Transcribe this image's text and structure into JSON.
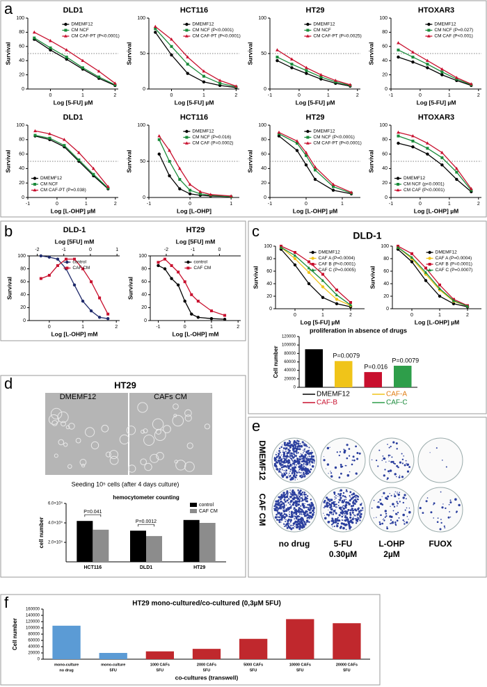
{
  "panels": {
    "letters": [
      "a",
      "b",
      "c",
      "d",
      "e",
      "f"
    ],
    "c_title": "DLD-1",
    "d_title": "HT29",
    "d_image_labels": [
      "DMEMF12",
      "CAFs CM"
    ],
    "d_caption": "Seeding 10⁵ cells (after 4 days culture)",
    "e_rows": [
      "DMEMF12",
      "CAF CM"
    ],
    "e_columns": [
      [
        "no drug"
      ],
      [
        "5-FU",
        "0.30µM"
      ],
      [
        "L-OHP",
        "2µM"
      ],
      [
        "FUOX"
      ]
    ]
  },
  "chart_data": [
    {
      "type": "line",
      "title": "DLD1",
      "xlabel": "Log [5-FU] µM",
      "ylabel": "Survival",
      "x": [
        -0.5,
        0,
        0.5,
        1,
        1.5,
        2
      ],
      "xlim": [
        -0.7,
        2.1
      ],
      "xticks": [
        0,
        1,
        2
      ],
      "ylim": [
        0,
        100
      ],
      "yticks": [
        0,
        20,
        40,
        60,
        80,
        100
      ],
      "reference_line": 50,
      "legend": "upper-right",
      "series": [
        {
          "name": "DMEMF12",
          "color": "#000000",
          "marker": "circle",
          "values": [
            70,
            55,
            42,
            28,
            15,
            5
          ]
        },
        {
          "name": "CM NCF",
          "color": "#1a8a3a",
          "marker": "square",
          "values": [
            72,
            58,
            45,
            30,
            17,
            6
          ]
        },
        {
          "name": "CM CAF-PT (P<0.0001)",
          "color": "#c8102e",
          "marker": "triangle",
          "values": [
            80,
            68,
            55,
            40,
            25,
            8
          ]
        }
      ]
    },
    {
      "type": "line",
      "title": "HCT116",
      "xlabel": "Log [5-FU] µM",
      "ylabel": "Survival",
      "x": [
        -0.5,
        0,
        0.5,
        1,
        1.5,
        2
      ],
      "xlim": [
        -0.7,
        2.1
      ],
      "xticks": [
        0,
        1,
        2
      ],
      "ylim": [
        0,
        100
      ],
      "yticks": [
        0,
        50,
        100
      ],
      "reference_line": 50,
      "legend": "upper-right",
      "series": [
        {
          "name": "DMEMF12",
          "color": "#000000",
          "marker": "circle",
          "values": [
            80,
            48,
            22,
            10,
            5,
            2
          ]
        },
        {
          "name": "CM NCF (P<0.0001)",
          "color": "#1a8a3a",
          "marker": "square",
          "values": [
            85,
            60,
            35,
            18,
            8,
            3
          ]
        },
        {
          "name": "CM CAF-PT (P<0.0001)",
          "color": "#c8102e",
          "marker": "triangle",
          "values": [
            88,
            70,
            45,
            25,
            12,
            4
          ]
        }
      ]
    },
    {
      "type": "line",
      "title": "HT29",
      "xlabel": "Log [5-FU] µM",
      "ylabel": "Survival",
      "x": [
        -0.75,
        -0.25,
        0.25,
        0.75,
        1.25,
        1.75
      ],
      "xlim": [
        -1,
        2.1
      ],
      "xticks": [
        -1,
        0,
        1,
        2
      ],
      "ylim": [
        0,
        100
      ],
      "yticks": [
        0,
        50,
        100
      ],
      "reference_line": 50,
      "legend": "upper-right",
      "series": [
        {
          "name": "DMEMF12",
          "color": "#000000",
          "marker": "circle",
          "values": [
            40,
            30,
            22,
            14,
            8,
            4
          ]
        },
        {
          "name": "CM NCF",
          "color": "#1a8a3a",
          "marker": "square",
          "values": [
            45,
            35,
            26,
            17,
            10,
            5
          ]
        },
        {
          "name": "CM CAF-PT (P=0.0025)",
          "color": "#c8102e",
          "marker": "triangle",
          "values": [
            55,
            42,
            30,
            20,
            12,
            6
          ]
        }
      ]
    },
    {
      "type": "line",
      "title": "HTOXAR3",
      "xlabel": "Log [5-FU] µM",
      "ylabel": "Survival",
      "x": [
        -0.75,
        -0.25,
        0.25,
        0.75,
        1.25,
        1.75
      ],
      "xlim": [
        -1,
        2.1
      ],
      "xticks": [
        -1,
        0,
        1,
        2
      ],
      "ylim": [
        0,
        100
      ],
      "yticks": [
        0,
        20,
        40,
        60,
        80,
        100
      ],
      "reference_line": 50,
      "legend": "upper-right",
      "series": [
        {
          "name": "DMEMF12",
          "color": "#000000",
          "marker": "circle",
          "values": [
            45,
            38,
            30,
            20,
            12,
            5
          ]
        },
        {
          "name": "CM NCF (P=0.027)",
          "color": "#1a8a3a",
          "marker": "square",
          "values": [
            55,
            45,
            35,
            24,
            14,
            6
          ]
        },
        {
          "name": "CM CAF (P<0.001)",
          "color": "#c8102e",
          "marker": "triangle",
          "values": [
            65,
            52,
            40,
            28,
            16,
            7
          ]
        }
      ]
    },
    {
      "type": "line",
      "title": "DLD1",
      "xlabel": "Log [L-OHP] µM",
      "ylabel": "Survival",
      "x": [
        -0.75,
        -0.25,
        0.25,
        0.75,
        1.25,
        1.75
      ],
      "xlim": [
        -1,
        2.1
      ],
      "xticks": [
        -1,
        0,
        1,
        2
      ],
      "ylim": [
        0,
        100
      ],
      "yticks": [
        0,
        20,
        40,
        60,
        80,
        100
      ],
      "reference_line": 50,
      "legend": "lower-left",
      "series": [
        {
          "name": "DMEMF12",
          "color": "#000000",
          "marker": "circle",
          "values": [
            85,
            80,
            70,
            50,
            30,
            12
          ]
        },
        {
          "name": "CM NCF",
          "color": "#1a8a3a",
          "marker": "square",
          "values": [
            86,
            82,
            72,
            52,
            32,
            13
          ]
        },
        {
          "name": "CM CAF-PT (P=0.038)",
          "color": "#c8102e",
          "marker": "triangle",
          "values": [
            92,
            88,
            80,
            62,
            40,
            15
          ]
        }
      ]
    },
    {
      "type": "line",
      "title": "HCT116",
      "xlabel": "Log [L-OHP]",
      "ylabel": "Survival",
      "x": [
        -0.75,
        -0.5,
        -0.25,
        0,
        0.25,
        0.5,
        1
      ],
      "xlim": [
        -1,
        1.2
      ],
      "xticks": [
        -1,
        0,
        1
      ],
      "ylim": [
        0,
        100
      ],
      "yticks": [
        0,
        50,
        100
      ],
      "reference_line": 50,
      "legend": "upper-right",
      "series": [
        {
          "name": "DMEMF12",
          "color": "#000000",
          "marker": "circle",
          "values": [
            60,
            30,
            12,
            5,
            3,
            2,
            1
          ]
        },
        {
          "name": "CM NCF (P=0.016)",
          "color": "#1a8a3a",
          "marker": "square",
          "values": [
            80,
            50,
            25,
            10,
            5,
            3,
            1
          ]
        },
        {
          "name": "CM CAF (P=0.0002)",
          "color": "#c8102e",
          "marker": "triangle",
          "values": [
            85,
            65,
            40,
            18,
            8,
            4,
            2
          ]
        }
      ]
    },
    {
      "type": "line",
      "title": "HT29",
      "xlabel": "Log [L-OHP] µM",
      "ylabel": "Survival",
      "x": [
        -0.75,
        -0.25,
        0,
        0.25,
        0.75,
        1.25
      ],
      "xlim": [
        -1,
        1.5
      ],
      "xticks": [
        -1,
        0,
        1
      ],
      "ylim": [
        0,
        100
      ],
      "yticks": [
        0,
        20,
        40,
        60,
        80,
        100
      ],
      "reference_line": 50,
      "legend": "upper-right",
      "series": [
        {
          "name": "DMEMF12",
          "color": "#000000",
          "marker": "circle",
          "values": [
            85,
            65,
            45,
            25,
            10,
            5
          ]
        },
        {
          "name": "CM NCF (P<0.0001)",
          "color": "#1a8a3a",
          "marker": "square",
          "values": [
            88,
            75,
            58,
            38,
            15,
            6
          ]
        },
        {
          "name": "CM CAF-PT (P<0.0001)",
          "color": "#c8102e",
          "marker": "triangle",
          "values": [
            90,
            78,
            62,
            42,
            18,
            7
          ]
        }
      ]
    },
    {
      "type": "line",
      "title": "HTOXAR3",
      "xlabel": "Log [L-OHP] µM",
      "ylabel": "Survival",
      "x": [
        -0.75,
        -0.25,
        0.25,
        0.75,
        1.25,
        1.75
      ],
      "xlim": [
        -1,
        2.1
      ],
      "xticks": [
        -1,
        0,
        1,
        2
      ],
      "ylim": [
        0,
        100
      ],
      "yticks": [
        0,
        20,
        40,
        60,
        80,
        100
      ],
      "reference_line": 50,
      "legend": "lower-left",
      "series": [
        {
          "name": "DMEMF12",
          "color": "#000000",
          "marker": "circle",
          "values": [
            75,
            70,
            60,
            45,
            25,
            8
          ]
        },
        {
          "name": "CM NCF (p<0.0001)",
          "color": "#1a8a3a",
          "marker": "square",
          "values": [
            85,
            78,
            68,
            55,
            35,
            10
          ]
        },
        {
          "name": "CM CAF (P<0.0001)",
          "color": "#c8102e",
          "marker": "triangle",
          "values": [
            90,
            85,
            75,
            62,
            40,
            12
          ]
        }
      ]
    },
    {
      "type": "line",
      "title": "DLD-1",
      "xlabel": "Log [L-OHP] mM",
      "x2label": "Log [5FU] mM",
      "ylabel": "Survival",
      "x": [
        -0.25,
        0,
        0.25,
        0.5,
        0.75,
        1,
        1.25,
        1.5,
        1.75
      ],
      "xlim": [
        -0.6,
        2.1
      ],
      "xticks": [
        0,
        1,
        2
      ],
      "x2lim": [
        -2.3,
        1.1
      ],
      "x2ticks": [
        -2,
        -1,
        0,
        1
      ],
      "ylim": [
        0,
        100
      ],
      "yticks": [
        0,
        20,
        40,
        60,
        80,
        100
      ],
      "legend": "upper-right",
      "series": [
        {
          "name": "control",
          "color": "#1f2a6b",
          "marker": "circle",
          "values": [
            100,
            98,
            95,
            80,
            55,
            30,
            15,
            5,
            3
          ]
        },
        {
          "name": "CAF CM",
          "color": "#c8102e",
          "marker": "square",
          "values": [
            65,
            70,
            85,
            95,
            95,
            80,
            60,
            35,
            10
          ]
        }
      ]
    },
    {
      "type": "line",
      "title": "HT29",
      "xlabel": "Log [L-OHP] mM",
      "x2label": "Log [5FU] mM",
      "ylabel": "Survival",
      "x": [
        -1,
        -0.75,
        -0.5,
        -0.25,
        0,
        0.25,
        0.5,
        1,
        1.5
      ],
      "xlim": [
        -1.3,
        2.1
      ],
      "xticks": [
        -1,
        0,
        1,
        2
      ],
      "x2lim": [
        -2.6,
        0.8
      ],
      "x2ticks": [
        -2,
        -1,
        0
      ],
      "ylim": [
        0,
        100
      ],
      "yticks": [
        0,
        20,
        40,
        60,
        80,
        100
      ],
      "legend": "upper-right",
      "series": [
        {
          "name": "control",
          "color": "#000000",
          "marker": "circle",
          "values": [
            85,
            80,
            65,
            55,
            30,
            10,
            5,
            3,
            2
          ]
        },
        {
          "name": "CAF CM",
          "color": "#c8102e",
          "marker": "square",
          "values": [
            90,
            95,
            85,
            75,
            60,
            40,
            30,
            15,
            8
          ]
        }
      ]
    },
    {
      "type": "line",
      "xlabel": "Log [5-FU] µM",
      "ylabel": "Survival",
      "x": [
        -0.5,
        0,
        0.5,
        1,
        1.5,
        2
      ],
      "xlim": [
        -0.7,
        2.5
      ],
      "xticks": [
        0,
        1,
        2
      ],
      "ylim": [
        0,
        100
      ],
      "yticks": [
        0,
        20,
        40,
        60,
        80,
        100
      ],
      "legend": "upper-right",
      "series": [
        {
          "name": "DMEMF12",
          "color": "#000000",
          "marker": "circle",
          "values": [
            95,
            70,
            40,
            18,
            8,
            3
          ]
        },
        {
          "name": "CAF A (P=0.0004)",
          "color": "#f0c419",
          "marker": "circle",
          "values": [
            98,
            80,
            58,
            35,
            15,
            5
          ]
        },
        {
          "name": "CAF B (P<0.0001)",
          "color": "#c8102e",
          "marker": "square",
          "values": [
            100,
            90,
            75,
            55,
            30,
            10
          ]
        },
        {
          "name": "CAF C (P=0.0005)",
          "color": "#1a8a3a",
          "marker": "triangle",
          "values": [
            98,
            85,
            65,
            45,
            22,
            6
          ]
        }
      ]
    },
    {
      "type": "line",
      "xlabel": "Log [L-OHP] µM",
      "ylabel": "Survival",
      "x": [
        -0.5,
        0,
        0.5,
        1,
        1.5,
        2
      ],
      "xlim": [
        -0.7,
        2.5
      ],
      "xticks": [
        0,
        1,
        2
      ],
      "ylim": [
        0,
        100
      ],
      "yticks": [
        0,
        20,
        40,
        60,
        80,
        100
      ],
      "legend": "upper-right",
      "series": [
        {
          "name": "DMEMF12",
          "color": "#000000",
          "marker": "circle",
          "values": [
            95,
            75,
            45,
            20,
            8,
            3
          ]
        },
        {
          "name": "CAF A (P=0.0004)",
          "color": "#f0c419",
          "marker": "circle",
          "values": [
            98,
            80,
            55,
            30,
            12,
            4
          ]
        },
        {
          "name": "CAF B (P=0.0001)",
          "color": "#c8102e",
          "marker": "square",
          "values": [
            100,
            88,
            65,
            38,
            15,
            5
          ]
        },
        {
          "name": "CAF C (P=0.0007)",
          "color": "#1a8a3a",
          "marker": "triangle",
          "values": [
            98,
            82,
            58,
            32,
            13,
            4
          ]
        }
      ]
    },
    {
      "type": "bar",
      "title": "proliferation in absence of drugs",
      "ylabel": "Cell number",
      "categories": [
        "DMEMF12",
        "CAF-A",
        "CAF-B",
        "CAF-C"
      ],
      "values": [
        90000,
        62000,
        36000,
        51000
      ],
      "colors": [
        "#000000",
        "#f0c419",
        "#c8102e",
        "#2e9e4a"
      ],
      "label_colors": [
        "#000000",
        "#e07b10",
        "#c8102e",
        "#1a8a3a"
      ],
      "annotations": [
        null,
        "P=0.0079",
        "P=0.016",
        "P=0.0079"
      ],
      "ylim": [
        0,
        120000
      ],
      "yticks": [
        0,
        20000,
        40000,
        60000,
        80000,
        100000,
        120000
      ],
      "legend": "below"
    },
    {
      "type": "bar",
      "title": "hemocytometer counting",
      "ylabel": "cell number",
      "categories": [
        "HCT116",
        "DLD1",
        "HT29"
      ],
      "series": [
        {
          "name": "control",
          "color": "#000000",
          "values": [
            420000,
            320000,
            430000
          ]
        },
        {
          "name": "CAF CM",
          "color": "#8c8c8c",
          "values": [
            330000,
            265000,
            400000
          ]
        }
      ],
      "annotations": [
        "P=0.041",
        "P=0.0012",
        null
      ],
      "ylim": [
        0,
        600000
      ],
      "yticks": [
        {
          "value": 200000,
          "label": "2.0×10⁵"
        },
        {
          "value": 400000,
          "label": "4.0×10⁵"
        },
        {
          "value": 600000,
          "label": "6.0×10⁵"
        }
      ],
      "legend": "upper-right"
    },
    {
      "type": "bar",
      "title": "HT29 mono-cultured/co-cultured (0,3µM 5FU)",
      "ylabel": "Cell number",
      "xlabel": "co-cultures (transwell)",
      "categories": [
        [
          "mono-culture",
          "no drug"
        ],
        [
          "mono-culture",
          "5FU"
        ],
        [
          "1000 CAFs",
          "5FU"
        ],
        [
          "2000 CAFs",
          "5FU"
        ],
        [
          "5000 CAFs",
          "5FU"
        ],
        [
          "10000 CAFs",
          "5FU"
        ],
        [
          "20000 CAFs",
          "5FU"
        ]
      ],
      "values": [
        107000,
        20000,
        25000,
        33000,
        65000,
        128000,
        115000
      ],
      "colors": [
        "#5b9bd5",
        "#5b9bd5",
        "#c0282d",
        "#c0282d",
        "#c0282d",
        "#c0282d",
        "#c0282d"
      ],
      "annotations": [
        null,
        null,
        null,
        "",
        null,
        null,
        null
      ],
      "ylim": [
        0,
        160000
      ],
      "yticks": [
        0,
        20000,
        40000,
        60000,
        80000,
        100000,
        120000,
        140000,
        160000
      ]
    }
  ]
}
